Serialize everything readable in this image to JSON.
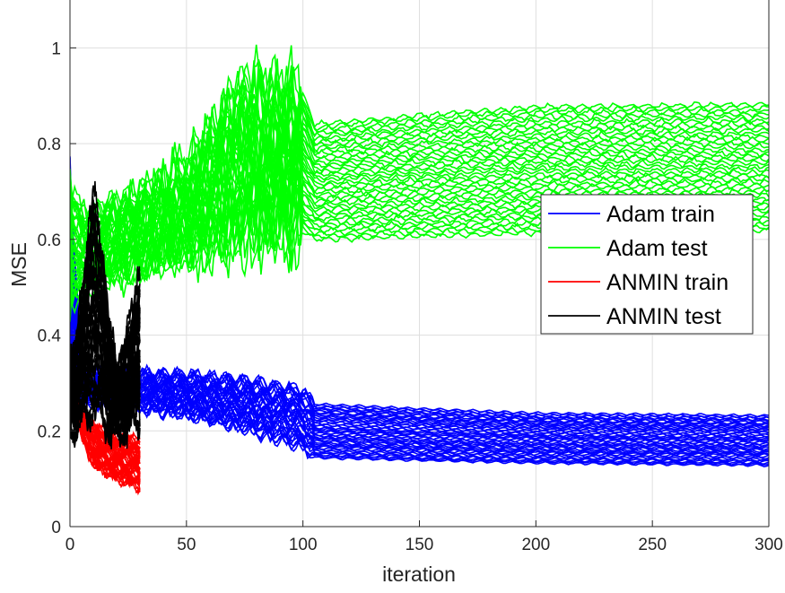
{
  "chart_data": {
    "type": "line",
    "xlabel": "iteration",
    "ylabel": "MSE",
    "xlim": [
      0,
      300
    ],
    "ylim": [
      0,
      1.1
    ],
    "xticks": [
      0,
      50,
      100,
      150,
      200,
      250,
      300
    ],
    "yticks": [
      0,
      0.2,
      0.4,
      0.6,
      0.8,
      1
    ],
    "xtick_labels": [
      "0",
      "50",
      "100",
      "150",
      "200",
      "250",
      "300"
    ],
    "ytick_labels": [
      "0",
      "0.2",
      "0.4",
      "0.6",
      "0.8",
      "1"
    ],
    "grid": true,
    "legend_position": "right",
    "series": [
      {
        "name": "Adam train",
        "color": "#0000ff",
        "x_range": [
          0,
          300
        ],
        "run_count": 40,
        "envelope_x": [
          0,
          5,
          25,
          50,
          75,
          100,
          105,
          150,
          200,
          300
        ],
        "envelope_low": [
          0.28,
          0.25,
          0.24,
          0.22,
          0.19,
          0.15,
          0.13,
          0.125,
          0.12,
          0.115
        ],
        "envelope_high": [
          0.78,
          0.34,
          0.33,
          0.33,
          0.32,
          0.3,
          0.27,
          0.26,
          0.25,
          0.245
        ]
      },
      {
        "name": "Adam test",
        "color": "#00ff00",
        "x_range": [
          0,
          300
        ],
        "run_count": 40,
        "envelope_x": [
          0,
          5,
          25,
          50,
          75,
          100,
          105,
          150,
          200,
          300
        ],
        "envelope_low": [
          0.42,
          0.47,
          0.51,
          0.54,
          0.56,
          0.58,
          0.57,
          0.575,
          0.58,
          0.585
        ],
        "envelope_high": [
          0.75,
          0.68,
          0.7,
          0.78,
          0.97,
          0.94,
          0.87,
          0.89,
          0.91,
          0.915
        ]
      },
      {
        "name": "ANMIN train",
        "color": "#ff0000",
        "x_range": [
          0,
          30
        ],
        "run_count": 40,
        "envelope_x": [
          0,
          5,
          10,
          20,
          30
        ],
        "envelope_low": [
          0.3,
          0.18,
          0.12,
          0.09,
          0.07
        ],
        "envelope_high": [
          0.31,
          0.26,
          0.22,
          0.2,
          0.19
        ]
      },
      {
        "name": "ANMIN test",
        "color": "#000000",
        "x_range": [
          0,
          30
        ],
        "run_count": 40,
        "envelope_x": [
          0,
          5,
          10,
          20,
          30
        ],
        "envelope_low": [
          0.2,
          0.19,
          0.19,
          0.19,
          0.19
        ],
        "envelope_high": [
          0.33,
          0.49,
          0.76,
          0.32,
          0.55
        ]
      }
    ]
  }
}
